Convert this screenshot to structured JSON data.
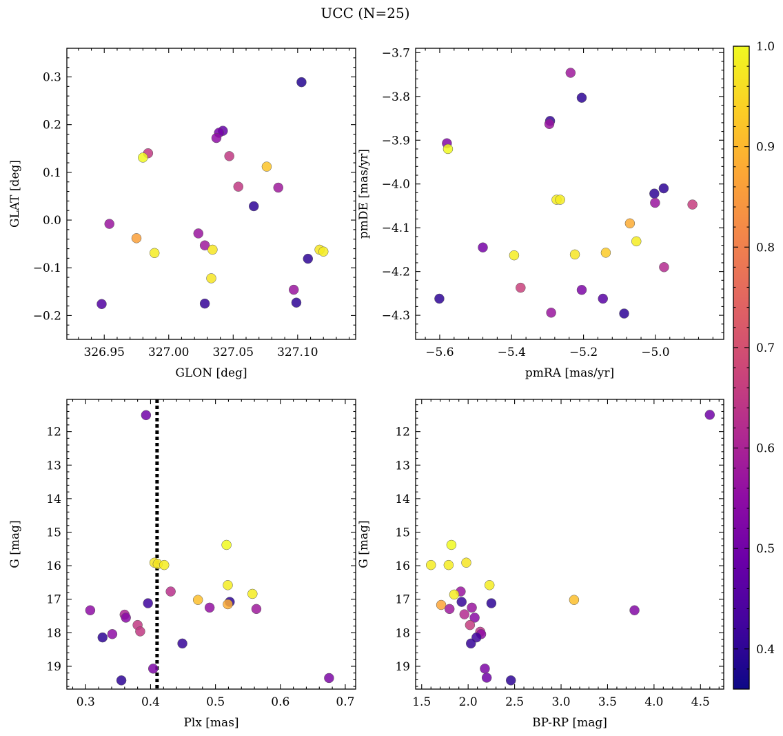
{
  "figure": {
    "title": "UCC (N=25)"
  },
  "colorbar": {
    "min": 0.36,
    "max": 1.0,
    "ticks": [
      0.4,
      0.5,
      0.6,
      0.7,
      0.8,
      0.9,
      1.0
    ],
    "tick_labels": [
      "0.4",
      "0.5",
      "0.6",
      "0.7",
      "0.8",
      "0.9",
      "1.0"
    ],
    "colormap": "plasma"
  },
  "chart_data": [
    {
      "type": "scatter",
      "xlabel": "GLON [deg]",
      "ylabel": "GLAT [deg]",
      "xlim": [
        326.921,
        327.145
      ],
      "ylim": [
        -0.25,
        0.36
      ],
      "xticks": [
        326.95,
        327.0,
        327.05,
        327.1
      ],
      "xtick_labels": [
        "326.95",
        "327.00",
        "327.05",
        "327.10"
      ],
      "yticks": [
        -0.2,
        -0.1,
        0.0,
        0.1,
        0.2,
        0.3
      ],
      "ytick_labels": [
        "−0.2",
        "−0.1",
        "0.0",
        "0.1",
        "0.2",
        "0.3"
      ],
      "y_inverted": false,
      "points": [
        {
          "x": 327.103,
          "y": 0.289,
          "c": 0.39
        },
        {
          "x": 327.042,
          "y": 0.187,
          "c": 0.48
        },
        {
          "x": 327.039,
          "y": 0.183,
          "c": 0.51
        },
        {
          "x": 327.037,
          "y": 0.172,
          "c": 0.55
        },
        {
          "x": 326.984,
          "y": 0.14,
          "c": 0.65
        },
        {
          "x": 326.98,
          "y": 0.131,
          "c": 1.0
        },
        {
          "x": 327.047,
          "y": 0.134,
          "c": 0.65
        },
        {
          "x": 327.076,
          "y": 0.112,
          "c": 0.92
        },
        {
          "x": 327.054,
          "y": 0.07,
          "c": 0.65
        },
        {
          "x": 327.085,
          "y": 0.068,
          "c": 0.58
        },
        {
          "x": 327.066,
          "y": 0.029,
          "c": 0.4
        },
        {
          "x": 326.954,
          "y": -0.008,
          "c": 0.57
        },
        {
          "x": 327.023,
          "y": -0.028,
          "c": 0.57
        },
        {
          "x": 326.975,
          "y": -0.038,
          "c": 0.86
        },
        {
          "x": 327.028,
          "y": -0.053,
          "c": 0.58
        },
        {
          "x": 327.034,
          "y": -0.062,
          "c": 0.97
        },
        {
          "x": 327.117,
          "y": -0.062,
          "c": 0.97
        },
        {
          "x": 327.12,
          "y": -0.066,
          "c": 0.98
        },
        {
          "x": 326.989,
          "y": -0.069,
          "c": 0.98
        },
        {
          "x": 327.108,
          "y": -0.081,
          "c": 0.4
        },
        {
          "x": 327.033,
          "y": -0.122,
          "c": 0.97
        },
        {
          "x": 327.097,
          "y": -0.146,
          "c": 0.57
        },
        {
          "x": 326.948,
          "y": -0.176,
          "c": 0.45
        },
        {
          "x": 327.028,
          "y": -0.175,
          "c": 0.41
        },
        {
          "x": 327.099,
          "y": -0.173,
          "c": 0.4
        }
      ]
    },
    {
      "type": "scatter",
      "xlabel": "pmRA [mas/yr]",
      "ylabel": "pmDE [mas/yr]",
      "xlim": [
        -5.667,
        -4.81
      ],
      "ylim": [
        -4.355,
        -3.69
      ],
      "xticks": [
        -5.6,
        -5.4,
        -5.2,
        -5.0
      ],
      "xtick_labels": [
        "−5.6",
        "−5.4",
        "−5.2",
        "−5.0"
      ],
      "yticks": [
        -4.3,
        -4.2,
        -4.1,
        -4.0,
        -3.9,
        -3.8,
        -3.7
      ],
      "ytick_labels": [
        "−4.3",
        "−4.2",
        "−4.1",
        "−4.0",
        "−3.9",
        "−3.8",
        "−3.7"
      ],
      "y_inverted": false,
      "points": [
        {
          "x": -5.236,
          "y": -3.746,
          "c": 0.58
        },
        {
          "x": -5.205,
          "y": -3.803,
          "c": 0.4
        },
        {
          "x": -5.293,
          "y": -3.856,
          "c": 0.41
        },
        {
          "x": -5.295,
          "y": -3.863,
          "c": 0.57
        },
        {
          "x": -5.58,
          "y": -3.907,
          "c": 0.53
        },
        {
          "x": -5.577,
          "y": -3.92,
          "c": 1.0
        },
        {
          "x": -5.003,
          "y": -4.022,
          "c": 0.4
        },
        {
          "x": -4.977,
          "y": -4.01,
          "c": 0.4
        },
        {
          "x": -5.275,
          "y": -4.036,
          "c": 0.98
        },
        {
          "x": -5.265,
          "y": -4.036,
          "c": 0.98
        },
        {
          "x": -5.001,
          "y": -4.043,
          "c": 0.57
        },
        {
          "x": -4.897,
          "y": -4.047,
          "c": 0.66
        },
        {
          "x": -5.071,
          "y": -4.09,
          "c": 0.88
        },
        {
          "x": -5.053,
          "y": -4.131,
          "c": 0.98
        },
        {
          "x": -5.48,
          "y": -4.145,
          "c": 0.51
        },
        {
          "x": -5.393,
          "y": -4.163,
          "c": 0.98
        },
        {
          "x": -5.224,
          "y": -4.161,
          "c": 0.97
        },
        {
          "x": -5.138,
          "y": -4.157,
          "c": 0.93
        },
        {
          "x": -4.976,
          "y": -4.19,
          "c": 0.62
        },
        {
          "x": -5.375,
          "y": -4.237,
          "c": 0.67
        },
        {
          "x": -5.205,
          "y": -4.242,
          "c": 0.52
        },
        {
          "x": -5.601,
          "y": -4.262,
          "c": 0.4
        },
        {
          "x": -5.146,
          "y": -4.262,
          "c": 0.46
        },
        {
          "x": -5.29,
          "y": -4.294,
          "c": 0.57
        },
        {
          "x": -5.087,
          "y": -4.296,
          "c": 0.4
        }
      ]
    },
    {
      "type": "scatter",
      "xlabel": "Plx [mas]",
      "ylabel": "G [mag]",
      "xlim": [
        0.271,
        0.716
      ],
      "ylim": [
        19.68,
        11.04
      ],
      "xticks": [
        0.3,
        0.4,
        0.5,
        0.6,
        0.7
      ],
      "xtick_labels": [
        "0.3",
        "0.4",
        "0.5",
        "0.6",
        "0.7"
      ],
      "yticks": [
        12,
        13,
        14,
        15,
        16,
        17,
        18,
        19
      ],
      "ytick_labels": [
        "12",
        "13",
        "14",
        "15",
        "16",
        "17",
        "18",
        "19"
      ],
      "y_inverted": true,
      "vline": {
        "x": 0.41,
        "style": "dotted"
      },
      "points": [
        {
          "x": 0.393,
          "y": 11.51,
          "c": 0.5
        },
        {
          "x": 0.517,
          "y": 15.38,
          "c": 1.0
        },
        {
          "x": 0.406,
          "y": 15.91,
          "c": 0.97
        },
        {
          "x": 0.411,
          "y": 15.95,
          "c": 0.97
        },
        {
          "x": 0.421,
          "y": 15.98,
          "c": 0.98
        },
        {
          "x": 0.519,
          "y": 16.58,
          "c": 0.98
        },
        {
          "x": 0.431,
          "y": 16.77,
          "c": 0.63
        },
        {
          "x": 0.557,
          "y": 16.84,
          "c": 0.98
        },
        {
          "x": 0.473,
          "y": 17.02,
          "c": 0.91
        },
        {
          "x": 0.522,
          "y": 17.08,
          "c": 0.4
        },
        {
          "x": 0.519,
          "y": 17.15,
          "c": 0.88
        },
        {
          "x": 0.396,
          "y": 17.12,
          "c": 0.42
        },
        {
          "x": 0.491,
          "y": 17.25,
          "c": 0.56
        },
        {
          "x": 0.563,
          "y": 17.29,
          "c": 0.58
        },
        {
          "x": 0.307,
          "y": 17.33,
          "c": 0.55
        },
        {
          "x": 0.36,
          "y": 17.46,
          "c": 0.6
        },
        {
          "x": 0.362,
          "y": 17.55,
          "c": 0.54
        },
        {
          "x": 0.38,
          "y": 17.77,
          "c": 0.65
        },
        {
          "x": 0.384,
          "y": 17.96,
          "c": 0.65
        },
        {
          "x": 0.341,
          "y": 18.04,
          "c": 0.55
        },
        {
          "x": 0.326,
          "y": 18.14,
          "c": 0.4
        },
        {
          "x": 0.449,
          "y": 18.32,
          "c": 0.41
        },
        {
          "x": 0.404,
          "y": 19.07,
          "c": 0.52
        },
        {
          "x": 0.355,
          "y": 19.42,
          "c": 0.4
        },
        {
          "x": 0.675,
          "y": 19.35,
          "c": 0.52
        }
      ]
    },
    {
      "type": "scatter",
      "xlabel": "BP-RP [mag]",
      "ylabel": "G [mag]",
      "xlim": [
        1.435,
        4.75
      ],
      "ylim": [
        19.68,
        11.04
      ],
      "xticks": [
        1.5,
        2.0,
        2.5,
        3.0,
        3.5,
        4.0,
        4.5
      ],
      "xtick_labels": [
        "1.5",
        "2.0",
        "2.5",
        "3.0",
        "3.5",
        "4.0",
        "4.5"
      ],
      "yticks": [
        12,
        13,
        14,
        15,
        16,
        17,
        18,
        19
      ],
      "ytick_labels": [
        "12",
        "13",
        "14",
        "15",
        "16",
        "17",
        "18",
        "19"
      ],
      "y_inverted": true,
      "points": [
        {
          "x": 4.6,
          "y": 11.5,
          "c": 0.5
        },
        {
          "x": 1.82,
          "y": 15.38,
          "c": 1.0
        },
        {
          "x": 1.98,
          "y": 15.91,
          "c": 0.97
        },
        {
          "x": 1.6,
          "y": 15.98,
          "c": 0.98
        },
        {
          "x": 1.79,
          "y": 15.98,
          "c": 0.98
        },
        {
          "x": 2.23,
          "y": 16.58,
          "c": 0.98
        },
        {
          "x": 1.92,
          "y": 16.77,
          "c": 0.57
        },
        {
          "x": 1.85,
          "y": 16.86,
          "c": 0.98
        },
        {
          "x": 3.14,
          "y": 17.02,
          "c": 0.91
        },
        {
          "x": 1.93,
          "y": 17.08,
          "c": 0.41
        },
        {
          "x": 2.25,
          "y": 17.12,
          "c": 0.4
        },
        {
          "x": 1.71,
          "y": 17.17,
          "c": 0.87
        },
        {
          "x": 2.04,
          "y": 17.25,
          "c": 0.57
        },
        {
          "x": 1.8,
          "y": 17.29,
          "c": 0.58
        },
        {
          "x": 3.79,
          "y": 17.33,
          "c": 0.53
        },
        {
          "x": 1.96,
          "y": 17.45,
          "c": 0.62
        },
        {
          "x": 2.07,
          "y": 17.55,
          "c": 0.54
        },
        {
          "x": 2.02,
          "y": 17.77,
          "c": 0.66
        },
        {
          "x": 2.13,
          "y": 17.97,
          "c": 0.64
        },
        {
          "x": 2.14,
          "y": 18.04,
          "c": 0.55
        },
        {
          "x": 2.09,
          "y": 18.14,
          "c": 0.42
        },
        {
          "x": 2.03,
          "y": 18.32,
          "c": 0.41
        },
        {
          "x": 2.18,
          "y": 19.07,
          "c": 0.52
        },
        {
          "x": 2.2,
          "y": 19.34,
          "c": 0.5
        },
        {
          "x": 2.46,
          "y": 19.42,
          "c": 0.4
        }
      ]
    }
  ]
}
